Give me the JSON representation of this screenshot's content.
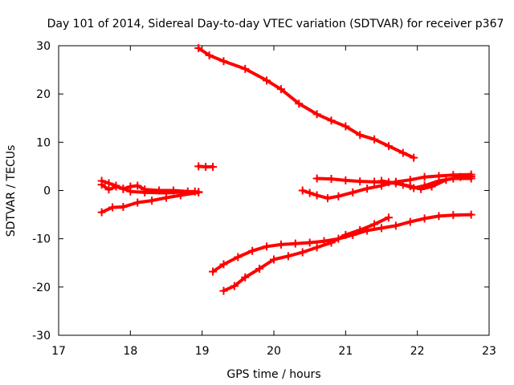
{
  "chart_data": {
    "type": "scatter",
    "title": "Day 101 of 2014, Sidereal Day-to-day VTEC variation (SDTVAR) for receiver p367",
    "xlabel": "GPS time / hours",
    "ylabel": "SDTVAR / TECUs",
    "xlim": [
      17,
      23
    ],
    "ylim": [
      -30,
      30
    ],
    "xticks": [
      17,
      18,
      19,
      20,
      21,
      22,
      23
    ],
    "yticks": [
      -30,
      -20,
      -10,
      0,
      10,
      20,
      30
    ],
    "grid": false,
    "marker": "plus",
    "color": "#ff0000",
    "series": [
      {
        "points": [
          [
            18.95,
            29.5
          ],
          [
            19.1,
            28.0
          ],
          [
            19.3,
            26.8
          ],
          [
            19.6,
            25.2
          ],
          [
            19.9,
            22.8
          ],
          [
            20.1,
            21.0
          ],
          [
            20.35,
            18.0
          ],
          [
            20.6,
            15.8
          ],
          [
            20.8,
            14.5
          ],
          [
            21.0,
            13.3
          ],
          [
            21.2,
            11.5
          ],
          [
            21.4,
            10.6
          ],
          [
            21.6,
            9.2
          ],
          [
            21.8,
            7.8
          ],
          [
            21.95,
            6.8
          ]
        ]
      },
      {
        "points": [
          [
            18.95,
            5.0
          ],
          [
            19.05,
            4.9
          ],
          [
            19.15,
            4.9
          ]
        ]
      },
      {
        "points": [
          [
            17.6,
            2.0
          ],
          [
            17.7,
            1.5
          ],
          [
            17.8,
            1.0
          ],
          [
            17.9,
            0.3
          ],
          [
            18.0,
            0.8
          ],
          [
            18.1,
            1.0
          ],
          [
            18.2,
            0.2
          ],
          [
            18.4,
            0.0
          ],
          [
            18.6,
            0.0
          ],
          [
            18.8,
            -0.2
          ],
          [
            18.95,
            -0.3
          ]
        ]
      },
      {
        "points": [
          [
            17.6,
            1.2
          ],
          [
            17.7,
            0.2
          ],
          [
            17.8,
            0.8
          ],
          [
            17.9,
            0.4
          ],
          [
            18.0,
            -0.2
          ],
          [
            18.2,
            -0.4
          ],
          [
            18.5,
            -0.5
          ],
          [
            18.9,
            -0.2
          ]
        ]
      },
      {
        "points": [
          [
            17.6,
            -4.5
          ],
          [
            17.75,
            -3.5
          ],
          [
            17.9,
            -3.4
          ],
          [
            18.1,
            -2.5
          ],
          [
            18.3,
            -2.1
          ],
          [
            18.5,
            -1.5
          ],
          [
            18.7,
            -1.0
          ],
          [
            18.95,
            -0.4
          ]
        ]
      },
      {
        "points": [
          [
            20.4,
            0.0
          ],
          [
            20.5,
            -0.5
          ],
          [
            20.6,
            -1.0
          ],
          [
            20.75,
            -1.6
          ],
          [
            20.9,
            -1.2
          ],
          [
            21.1,
            -0.4
          ],
          [
            21.3,
            0.4
          ],
          [
            21.5,
            1.0
          ],
          [
            21.7,
            1.8
          ],
          [
            21.9,
            2.2
          ],
          [
            22.1,
            2.8
          ],
          [
            22.3,
            3.0
          ],
          [
            22.5,
            3.2
          ],
          [
            22.75,
            3.3
          ]
        ]
      },
      {
        "points": [
          [
            20.6,
            2.5
          ],
          [
            20.8,
            2.4
          ],
          [
            21.0,
            2.1
          ],
          [
            21.2,
            1.9
          ],
          [
            21.4,
            1.8
          ],
          [
            21.6,
            1.7
          ],
          [
            21.8,
            1.2
          ],
          [
            21.95,
            0.5
          ],
          [
            22.1,
            1.0
          ],
          [
            22.3,
            2.0
          ],
          [
            22.5,
            2.5
          ],
          [
            22.75,
            2.5
          ]
        ]
      },
      {
        "points": [
          [
            21.5,
            2.0
          ],
          [
            21.7,
            1.5
          ],
          [
            21.9,
            0.9
          ],
          [
            22.05,
            0.3
          ],
          [
            22.2,
            0.8
          ],
          [
            22.4,
            2.2
          ],
          [
            22.6,
            2.8
          ],
          [
            22.75,
            2.9
          ]
        ]
      },
      {
        "points": [
          [
            19.15,
            -16.8
          ],
          [
            19.3,
            -15.3
          ],
          [
            19.5,
            -13.8
          ],
          [
            19.7,
            -12.5
          ],
          [
            19.9,
            -11.6
          ],
          [
            20.1,
            -11.2
          ],
          [
            20.3,
            -11.0
          ],
          [
            20.5,
            -10.8
          ],
          [
            20.7,
            -10.5
          ],
          [
            20.9,
            -10.0
          ],
          [
            21.1,
            -9.2
          ],
          [
            21.3,
            -8.3
          ],
          [
            21.5,
            -7.8
          ],
          [
            21.7,
            -7.3
          ],
          [
            21.9,
            -6.5
          ],
          [
            22.1,
            -5.8
          ],
          [
            22.3,
            -5.3
          ],
          [
            22.5,
            -5.1
          ],
          [
            22.75,
            -5.0
          ]
        ]
      },
      {
        "points": [
          [
            19.3,
            -20.8
          ],
          [
            19.45,
            -19.8
          ],
          [
            19.6,
            -18.0
          ],
          [
            19.8,
            -16.2
          ],
          [
            20.0,
            -14.3
          ],
          [
            20.2,
            -13.6
          ],
          [
            20.4,
            -12.8
          ],
          [
            20.6,
            -11.8
          ],
          [
            20.8,
            -10.8
          ],
          [
            21.0,
            -9.2
          ],
          [
            21.2,
            -8.2
          ],
          [
            21.4,
            -7.0
          ],
          [
            21.6,
            -5.6
          ]
        ]
      }
    ]
  }
}
